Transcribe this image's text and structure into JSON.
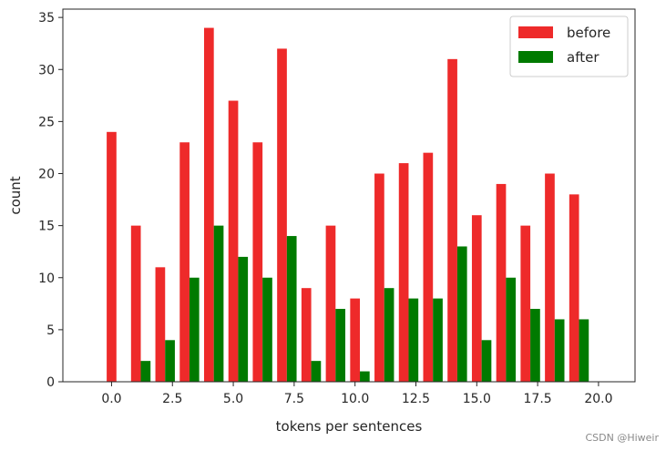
{
  "chart_data": {
    "type": "bar",
    "xlabel": "tokens per sentences",
    "ylabel": "count",
    "xlim": [
      -2.0,
      21.5
    ],
    "ylim": [
      0,
      35.8
    ],
    "xticks": [
      "0.0",
      "2.5",
      "5.0",
      "7.5",
      "10.0",
      "12.5",
      "15.0",
      "17.5",
      "20.0"
    ],
    "yticks": [
      "0",
      "5",
      "10",
      "15",
      "20",
      "25",
      "30",
      "35"
    ],
    "grid": false,
    "legend_position": "top-right",
    "x": [
      0,
      1,
      2,
      3,
      4,
      5,
      6,
      7,
      8,
      9,
      10,
      11,
      12,
      13,
      14,
      15,
      16,
      17,
      18,
      19
    ],
    "series": [
      {
        "name": "before",
        "color": "#ee2a2a",
        "values": [
          24,
          15,
          11,
          23,
          34,
          27,
          23,
          32,
          9,
          15,
          8,
          20,
          21,
          22,
          31,
          16,
          19,
          15,
          20,
          18
        ]
      },
      {
        "name": "after",
        "color": "#007a00",
        "values": [
          0,
          2,
          4,
          10,
          15,
          12,
          10,
          14,
          2,
          7,
          1,
          9,
          8,
          8,
          13,
          4,
          10,
          7,
          6,
          6
        ]
      }
    ]
  },
  "watermark": "CSDN @Hiweir"
}
